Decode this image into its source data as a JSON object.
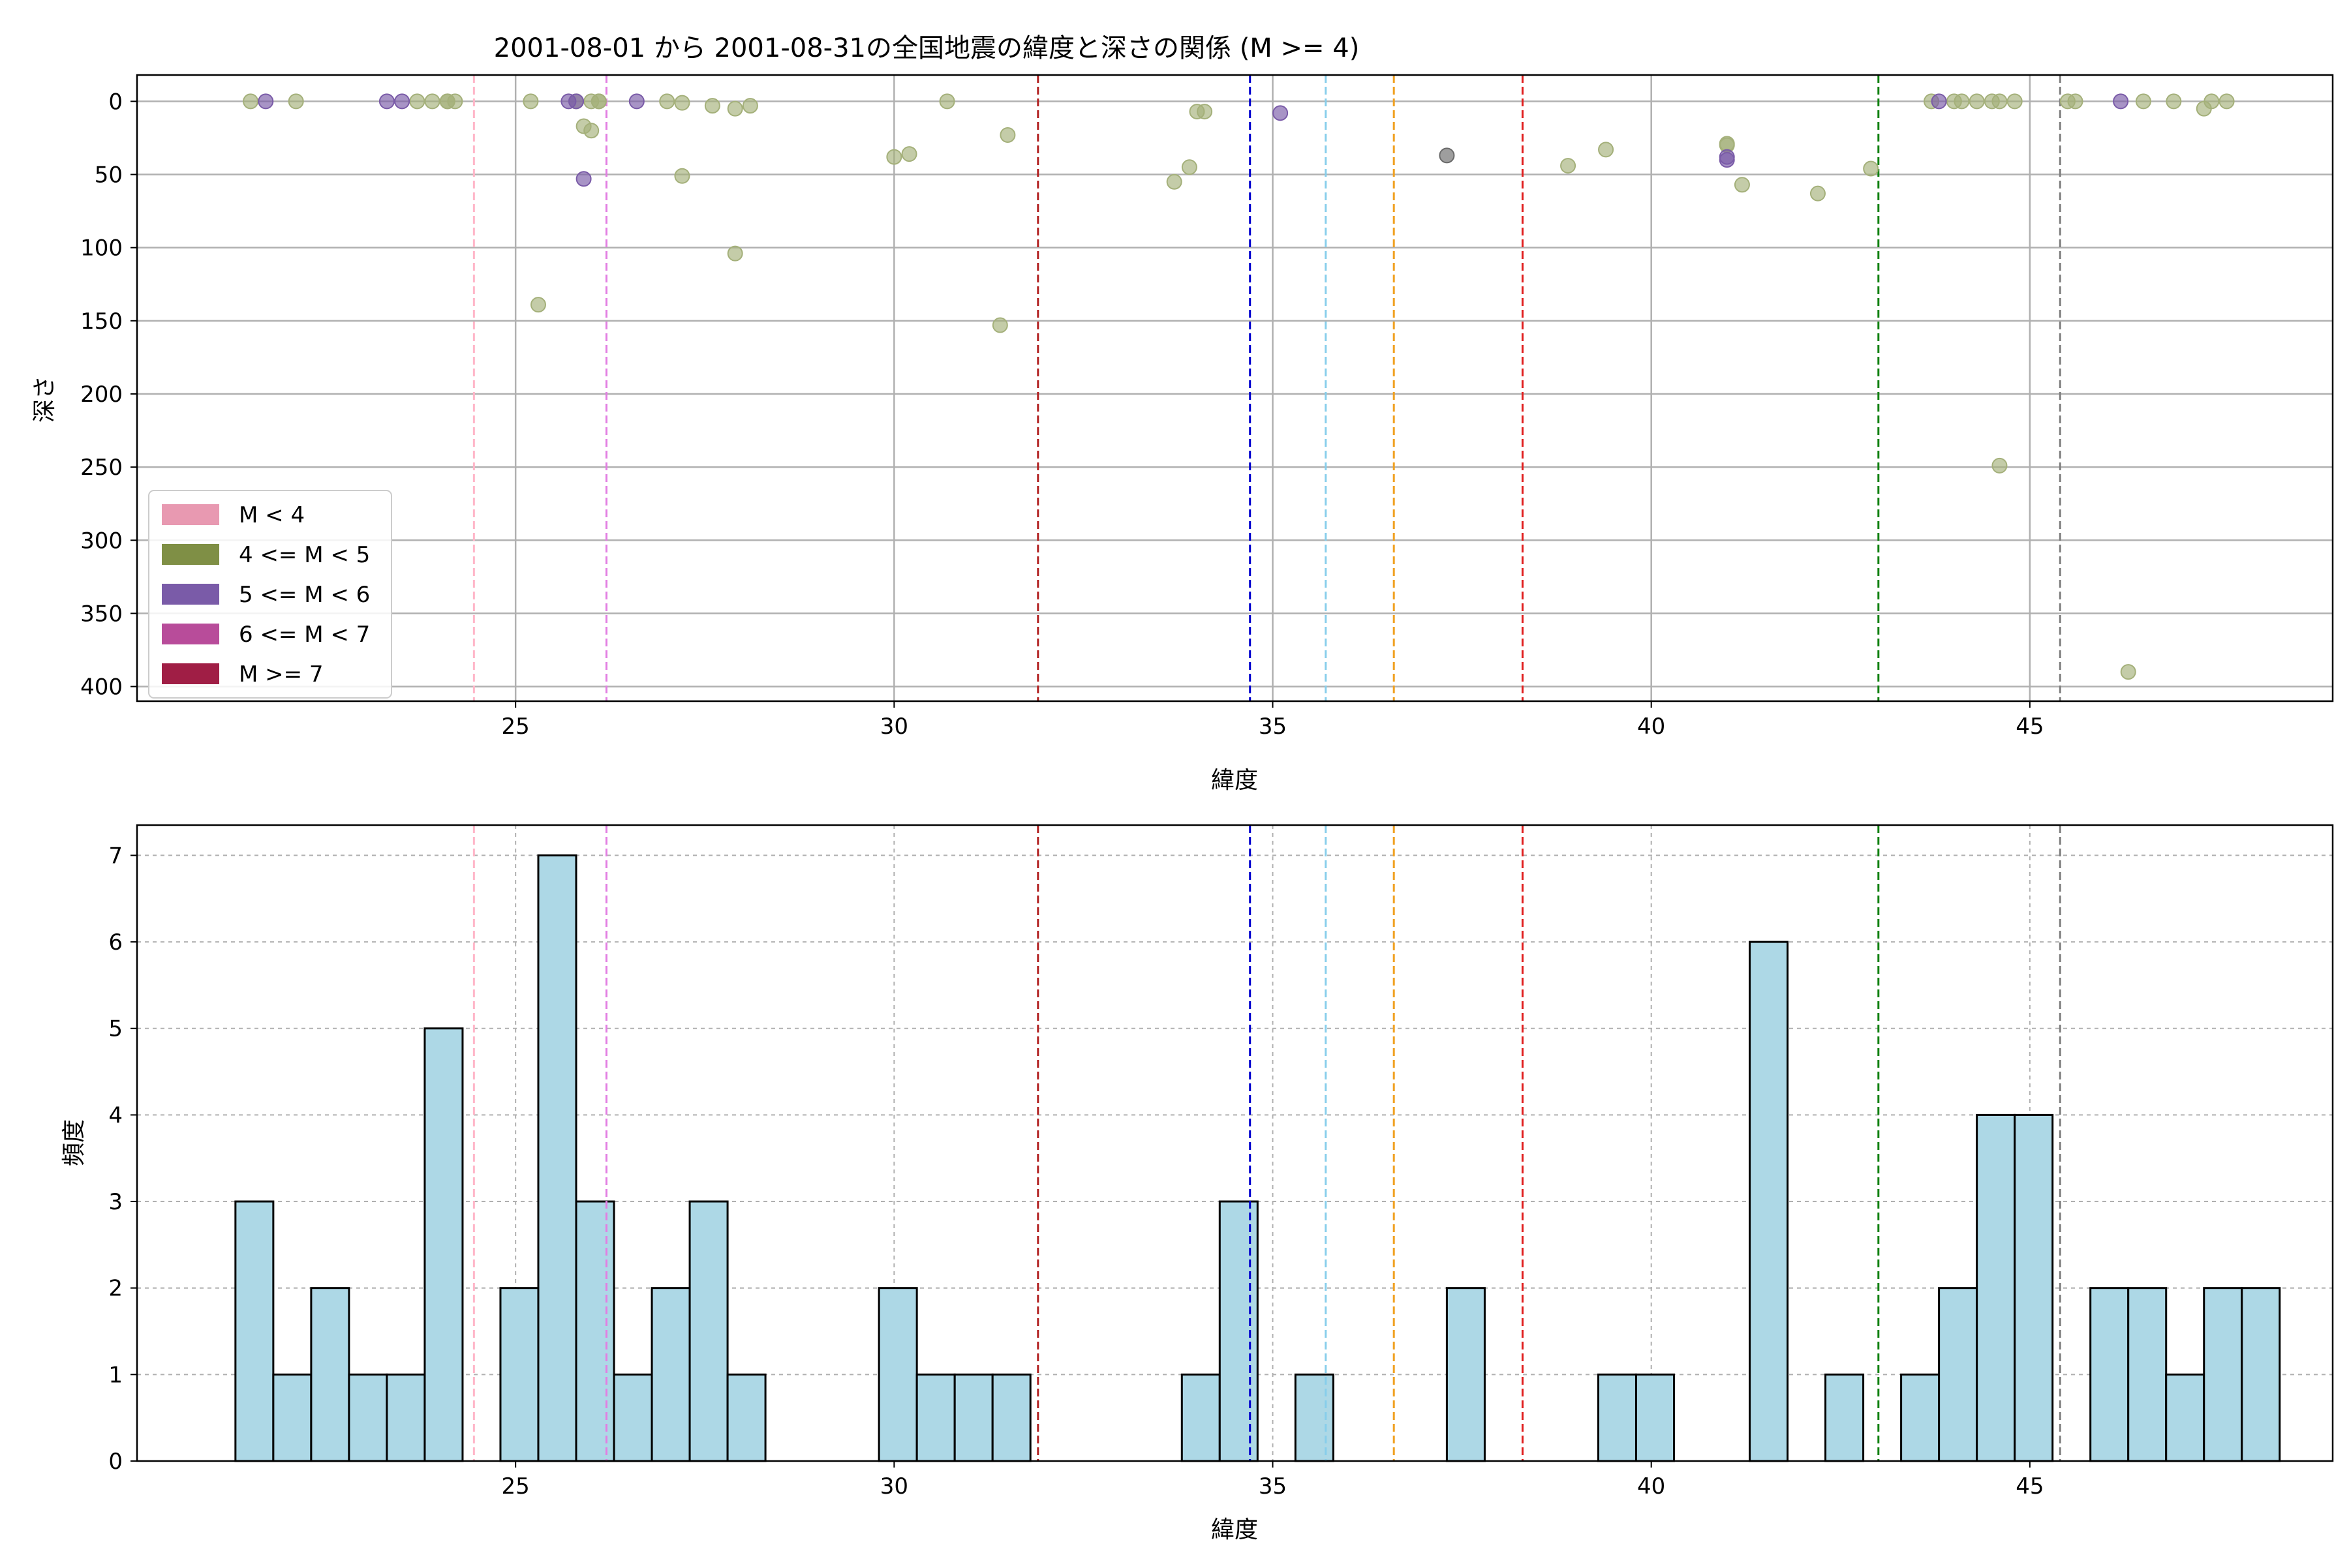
{
  "chart_data": [
    {
      "type": "scatter",
      "title": "2001-08-01 から 2001-08-31の全国地震の緯度と深さの関係 (M >= 4)",
      "xlabel": "緯度",
      "ylabel": "深さ",
      "xlim": [
        20,
        49
      ],
      "ylim": [
        410,
        -18
      ],
      "y_inverted": true,
      "grid": true,
      "xticks": [
        25,
        30,
        35,
        40,
        45
      ],
      "yticks": [
        0,
        50,
        100,
        150,
        200,
        250,
        300,
        350,
        400
      ],
      "legend": {
        "placement": "lower-left",
        "entries": [
          {
            "label": "M < 4",
            "color": "#e899b1"
          },
          {
            "label": "4 <= M < 5",
            "color": "#7f8f45"
          },
          {
            "label": "5 <= M < 6",
            "color": "#7a5ba8"
          },
          {
            "label": "6 <= M < 7",
            "color": "#b84c9a"
          },
          {
            "label": "M >= 7",
            "color": "#a01e45"
          }
        ]
      },
      "vlines": [
        {
          "x": 24.45,
          "color": "#ffb6c8"
        },
        {
          "x": 26.2,
          "color": "#e27ee2"
        },
        {
          "x": 31.9,
          "color": "#b22222"
        },
        {
          "x": 34.7,
          "color": "#0000cd"
        },
        {
          "x": 35.7,
          "color": "#87ceeb"
        },
        {
          "x": 36.6,
          "color": "#f0a020"
        },
        {
          "x": 38.3,
          "color": "#e02020"
        },
        {
          "x": 43.0,
          "color": "#108010"
        },
        {
          "x": 45.4,
          "color": "#808080"
        }
      ],
      "series": [
        {
          "color": "#a4b07a",
          "points": [
            [
              21.5,
              0
            ],
            [
              22.1,
              0
            ],
            [
              23.7,
              0
            ],
            [
              23.9,
              0
            ],
            [
              24.1,
              0
            ],
            [
              24.1,
              0
            ],
            [
              24.2,
              0
            ],
            [
              25.2,
              0
            ],
            [
              25.8,
              0
            ],
            [
              26.0,
              0
            ],
            [
              26.1,
              0
            ],
            [
              26.1,
              0
            ],
            [
              27.0,
              0
            ],
            [
              27.2,
              1
            ],
            [
              27.6,
              3
            ],
            [
              27.9,
              5
            ],
            [
              28.1,
              3
            ],
            [
              25.3,
              139
            ],
            [
              25.9,
              17
            ],
            [
              26.0,
              20
            ],
            [
              27.2,
              51
            ],
            [
              27.9,
              104
            ],
            [
              30.0,
              38
            ],
            [
              30.2,
              36
            ],
            [
              30.7,
              0
            ],
            [
              31.4,
              153
            ],
            [
              31.5,
              23
            ],
            [
              33.7,
              55
            ],
            [
              33.9,
              45
            ],
            [
              34.0,
              7
            ],
            [
              34.1,
              7
            ],
            [
              38.9,
              44
            ],
            [
              39.4,
              33
            ],
            [
              41.0,
              29
            ],
            [
              41.0,
              30
            ],
            [
              41.2,
              57
            ],
            [
              42.2,
              63
            ],
            [
              42.9,
              46
            ],
            [
              43.7,
              0
            ],
            [
              44.0,
              0
            ],
            [
              44.1,
              0
            ],
            [
              44.3,
              0
            ],
            [
              44.5,
              0
            ],
            [
              44.6,
              0
            ],
            [
              44.8,
              0
            ],
            [
              44.6,
              249
            ],
            [
              45.5,
              0
            ],
            [
              45.6,
              0
            ],
            [
              46.5,
              0
            ],
            [
              46.9,
              0
            ],
            [
              47.3,
              5
            ],
            [
              47.4,
              0
            ],
            [
              47.6,
              0
            ],
            [
              46.3,
              390
            ]
          ]
        },
        {
          "color": "#7a5ba8",
          "points": [
            [
              21.7,
              0
            ],
            [
              23.3,
              0
            ],
            [
              23.5,
              0
            ],
            [
              25.7,
              0
            ],
            [
              25.8,
              0
            ],
            [
              25.9,
              53
            ],
            [
              26.6,
              0
            ],
            [
              35.1,
              8
            ],
            [
              41.0,
              38
            ],
            [
              41.0,
              40
            ],
            [
              43.8,
              0
            ],
            [
              46.2,
              0
            ]
          ]
        },
        {
          "color": "#6a6a6a",
          "points": [
            [
              37.3,
              37
            ]
          ]
        }
      ]
    },
    {
      "type": "bar",
      "xlabel": "緯度",
      "ylabel": "頻度",
      "xlim": [
        20,
        49
      ],
      "ylim": [
        0,
        7.35
      ],
      "xticks": [
        25,
        30,
        35,
        40,
        45
      ],
      "yticks": [
        0,
        1,
        2,
        3,
        4,
        5,
        6,
        7
      ],
      "grid": true,
      "bar_color": "#add8e6",
      "edge_color": "#000000",
      "bin_start": 21.3,
      "bin_width": 0.5,
      "values": [
        3,
        1,
        2,
        1,
        1,
        5,
        0,
        2,
        7,
        3,
        1,
        2,
        3,
        1,
        0,
        0,
        0,
        2,
        1,
        1,
        1,
        0,
        0,
        0,
        0,
        1,
        3,
        0,
        1,
        0,
        0,
        0,
        2,
        0,
        0,
        0,
        1,
        1,
        0,
        0,
        6,
        0,
        1,
        0,
        1,
        2,
        4,
        4,
        0,
        2,
        2,
        1,
        2,
        2
      ],
      "vlines": [
        {
          "x": 24.45,
          "color": "#ffb6c8"
        },
        {
          "x": 26.2,
          "color": "#e27ee2"
        },
        {
          "x": 31.9,
          "color": "#b22222"
        },
        {
          "x": 34.7,
          "color": "#0000cd"
        },
        {
          "x": 35.7,
          "color": "#87ceeb"
        },
        {
          "x": 36.6,
          "color": "#f0a020"
        },
        {
          "x": 38.3,
          "color": "#e02020"
        },
        {
          "x": 43.0,
          "color": "#108010"
        },
        {
          "x": 45.4,
          "color": "#808080"
        }
      ]
    }
  ]
}
